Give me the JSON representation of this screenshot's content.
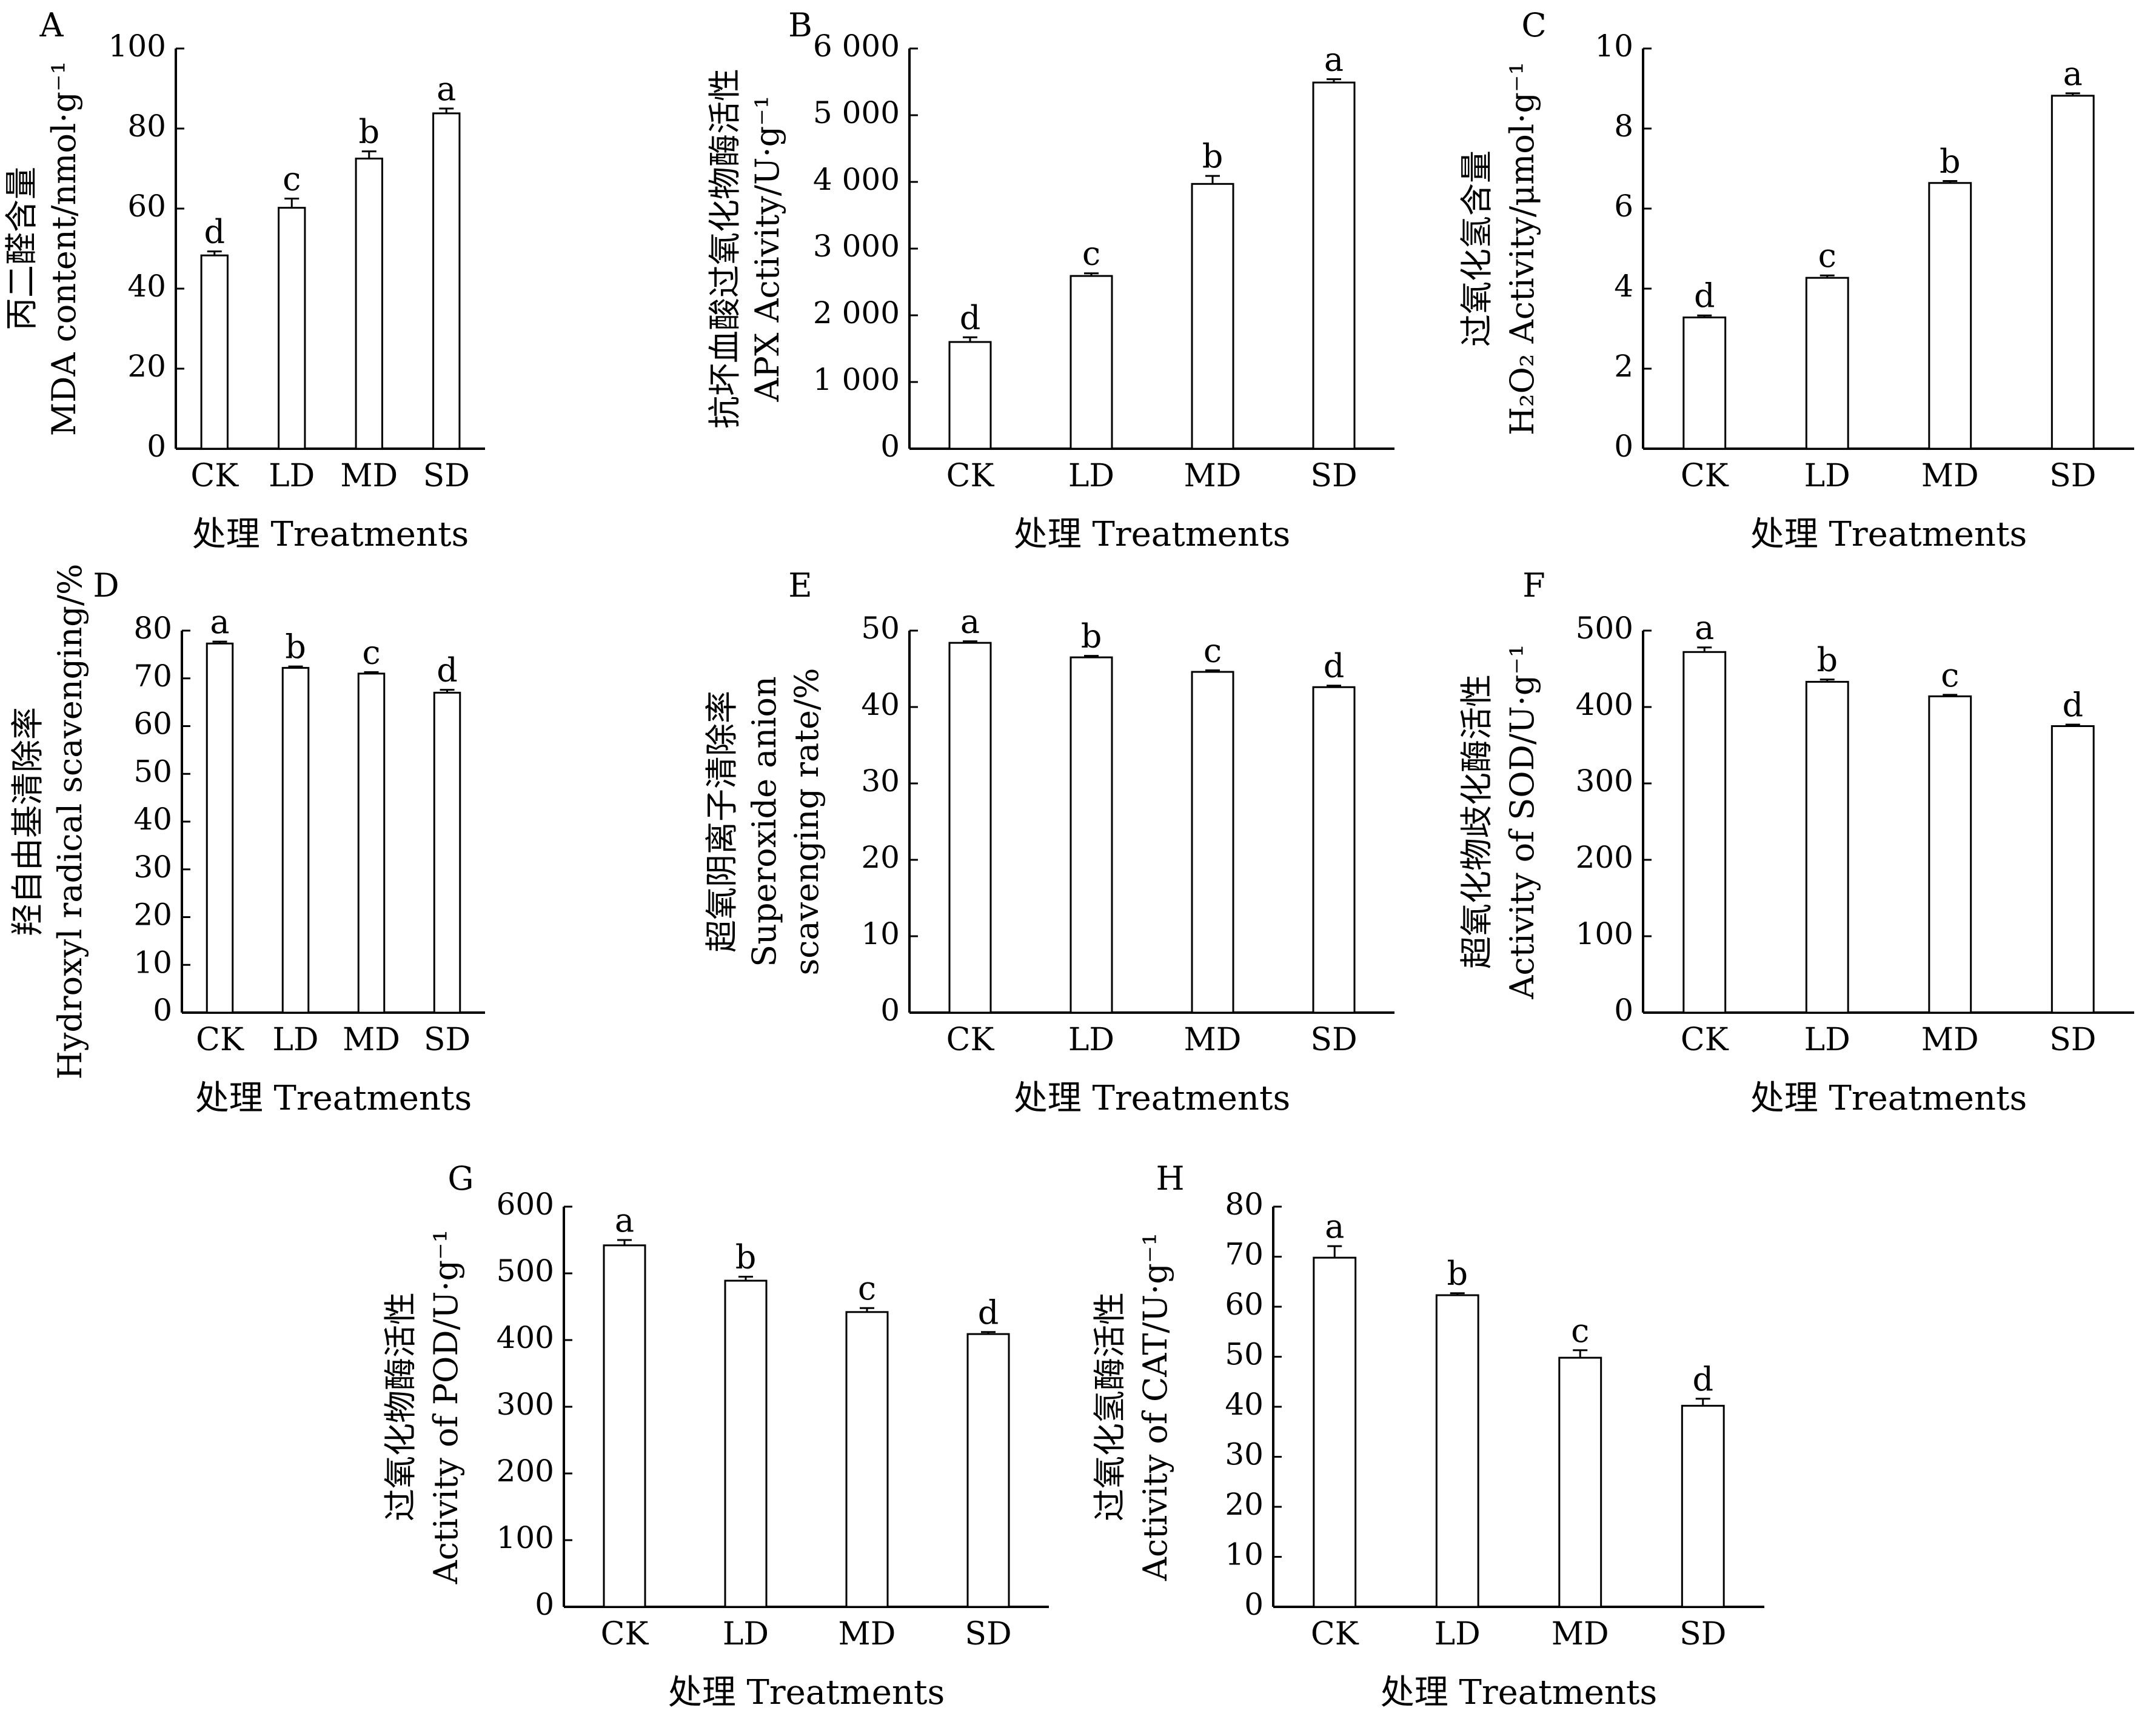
{
  "figure": {
    "categories": [
      "CK",
      "LD",
      "MD",
      "SD"
    ]
  },
  "chart_data": [
    {
      "panel": "A",
      "type": "bar",
      "categories": [
        "CK",
        "LD",
        "MD",
        "SD"
      ],
      "values": [
        48.3,
        60.2,
        72.5,
        83.8
      ],
      "errors": [
        1.0,
        2.3,
        1.8,
        1.2
      ],
      "significance": [
        "d",
        "c",
        "b",
        "a"
      ],
      "ylabel_zh": "丙二醛含量",
      "ylabel_en": "MDA content/nmol·g⁻¹",
      "xlabel": "处理 Treatments",
      "ylim": [
        0,
        100
      ],
      "yticks": [
        0,
        20,
        40,
        60,
        80,
        100
      ],
      "ytick_labels": [
        "0",
        "20",
        "40",
        "60",
        "80",
        "100"
      ]
    },
    {
      "panel": "B",
      "type": "bar",
      "categories": [
        "CK",
        "LD",
        "MD",
        "SD"
      ],
      "values": [
        1600,
        2590,
        3970,
        5490
      ],
      "errors": [
        70,
        40,
        120,
        50
      ],
      "significance": [
        "d",
        "c",
        "b",
        "a"
      ],
      "ylabel_zh": "抗坏血酸过氧化物酶活性",
      "ylabel_en": "APX Activity/U·g⁻¹",
      "xlabel": "处理 Treatments",
      "ylim": [
        0,
        6000
      ],
      "yticks": [
        0,
        1000,
        2000,
        3000,
        4000,
        5000,
        6000
      ],
      "ytick_labels": [
        "0",
        "1 000",
        "2 000",
        "3 000",
        "4 000",
        "5 000",
        "6 000"
      ]
    },
    {
      "panel": "C",
      "type": "bar",
      "categories": [
        "CK",
        "LD",
        "MD",
        "SD"
      ],
      "values": [
        3.28,
        4.27,
        6.64,
        8.82
      ],
      "errors": [
        0.05,
        0.06,
        0.05,
        0.06
      ],
      "significance": [
        "d",
        "c",
        "b",
        "a"
      ],
      "ylabel_zh": "过氧化氢含量",
      "ylabel_en": "H₂O₂ Activity/μmol·g⁻¹",
      "xlabel": "处理 Treatments",
      "ylim": [
        0,
        10
      ],
      "yticks": [
        0,
        2,
        4,
        6,
        8,
        10
      ],
      "ytick_labels": [
        "0",
        "2",
        "4",
        "6",
        "8",
        "10"
      ]
    },
    {
      "panel": "D",
      "type": "bar",
      "categories": [
        "CK",
        "LD",
        "MD",
        "SD"
      ],
      "values": [
        77.3,
        72.2,
        71.0,
        67.0
      ],
      "errors": [
        0.4,
        0.3,
        0.3,
        0.6
      ],
      "significance": [
        "a",
        "b",
        "c",
        "d"
      ],
      "ylabel_zh": "羟自由基清除率",
      "ylabel_en": "Hydroxyl radical scavenging/%",
      "xlabel": "处理 Treatments",
      "ylim": [
        0,
        80
      ],
      "yticks": [
        0,
        10,
        20,
        30,
        40,
        50,
        60,
        70,
        80
      ],
      "ytick_labels": [
        "0",
        "10",
        "20",
        "30",
        "40",
        "50",
        "60",
        "70",
        "80"
      ]
    },
    {
      "panel": "E",
      "type": "bar",
      "categories": [
        "CK",
        "LD",
        "MD",
        "SD"
      ],
      "values": [
        48.4,
        46.5,
        44.6,
        42.6
      ],
      "errors": [
        0.2,
        0.2,
        0.2,
        0.2
      ],
      "significance": [
        "a",
        "b",
        "c",
        "d"
      ],
      "ylabel_zh": "超氧阴离子清除率",
      "ylabel_en": "Superoxide anion",
      "ylabel_en2": "scavenging rate/%",
      "xlabel": "处理 Treatments",
      "ylim": [
        0,
        50
      ],
      "yticks": [
        0,
        10,
        20,
        30,
        40,
        50
      ],
      "ytick_labels": [
        "0",
        "10",
        "20",
        "30",
        "40",
        "50"
      ]
    },
    {
      "panel": "F",
      "type": "bar",
      "categories": [
        "CK",
        "LD",
        "MD",
        "SD"
      ],
      "values": [
        472,
        433,
        414,
        375
      ],
      "errors": [
        6,
        3,
        2,
        2
      ],
      "significance": [
        "a",
        "b",
        "c",
        "d"
      ],
      "ylabel_zh": "超氧化物歧化酶活性",
      "ylabel_en": "Activity of SOD/U·g⁻¹",
      "xlabel": "处理 Treatments",
      "ylim": [
        0,
        500
      ],
      "yticks": [
        0,
        100,
        200,
        300,
        400,
        500
      ],
      "ytick_labels": [
        "0",
        "100",
        "200",
        "300",
        "400",
        "500"
      ]
    },
    {
      "panel": "G",
      "type": "bar",
      "categories": [
        "CK",
        "LD",
        "MD",
        "SD"
      ],
      "values": [
        542,
        489,
        442,
        409
      ],
      "errors": [
        8,
        6,
        6,
        3
      ],
      "significance": [
        "a",
        "b",
        "c",
        "d"
      ],
      "ylabel_zh": "过氧化物酶活性",
      "ylabel_en": "Activity of POD/U·g⁻¹",
      "xlabel": "处理 Treatments",
      "ylim": [
        0,
        600
      ],
      "yticks": [
        0,
        100,
        200,
        300,
        400,
        500,
        600
      ],
      "ytick_labels": [
        "0",
        "100",
        "200",
        "300",
        "400",
        "500",
        "600"
      ]
    },
    {
      "panel": "H",
      "type": "bar",
      "categories": [
        "CK",
        "LD",
        "MD",
        "SD"
      ],
      "values": [
        69.8,
        62.3,
        49.8,
        40.2
      ],
      "errors": [
        2.3,
        0.4,
        1.5,
        1.4
      ],
      "significance": [
        "a",
        "b",
        "c",
        "d"
      ],
      "ylabel_zh": "过氧化氢酶活性",
      "ylabel_en": "Activity of CAT/U·g⁻¹",
      "xlabel": "处理 Treatments",
      "ylim": [
        0,
        80
      ],
      "yticks": [
        0,
        10,
        20,
        30,
        40,
        50,
        60,
        70,
        80
      ],
      "ytick_labels": [
        "0",
        "10",
        "20",
        "30",
        "40",
        "50",
        "60",
        "70",
        "80"
      ]
    }
  ]
}
